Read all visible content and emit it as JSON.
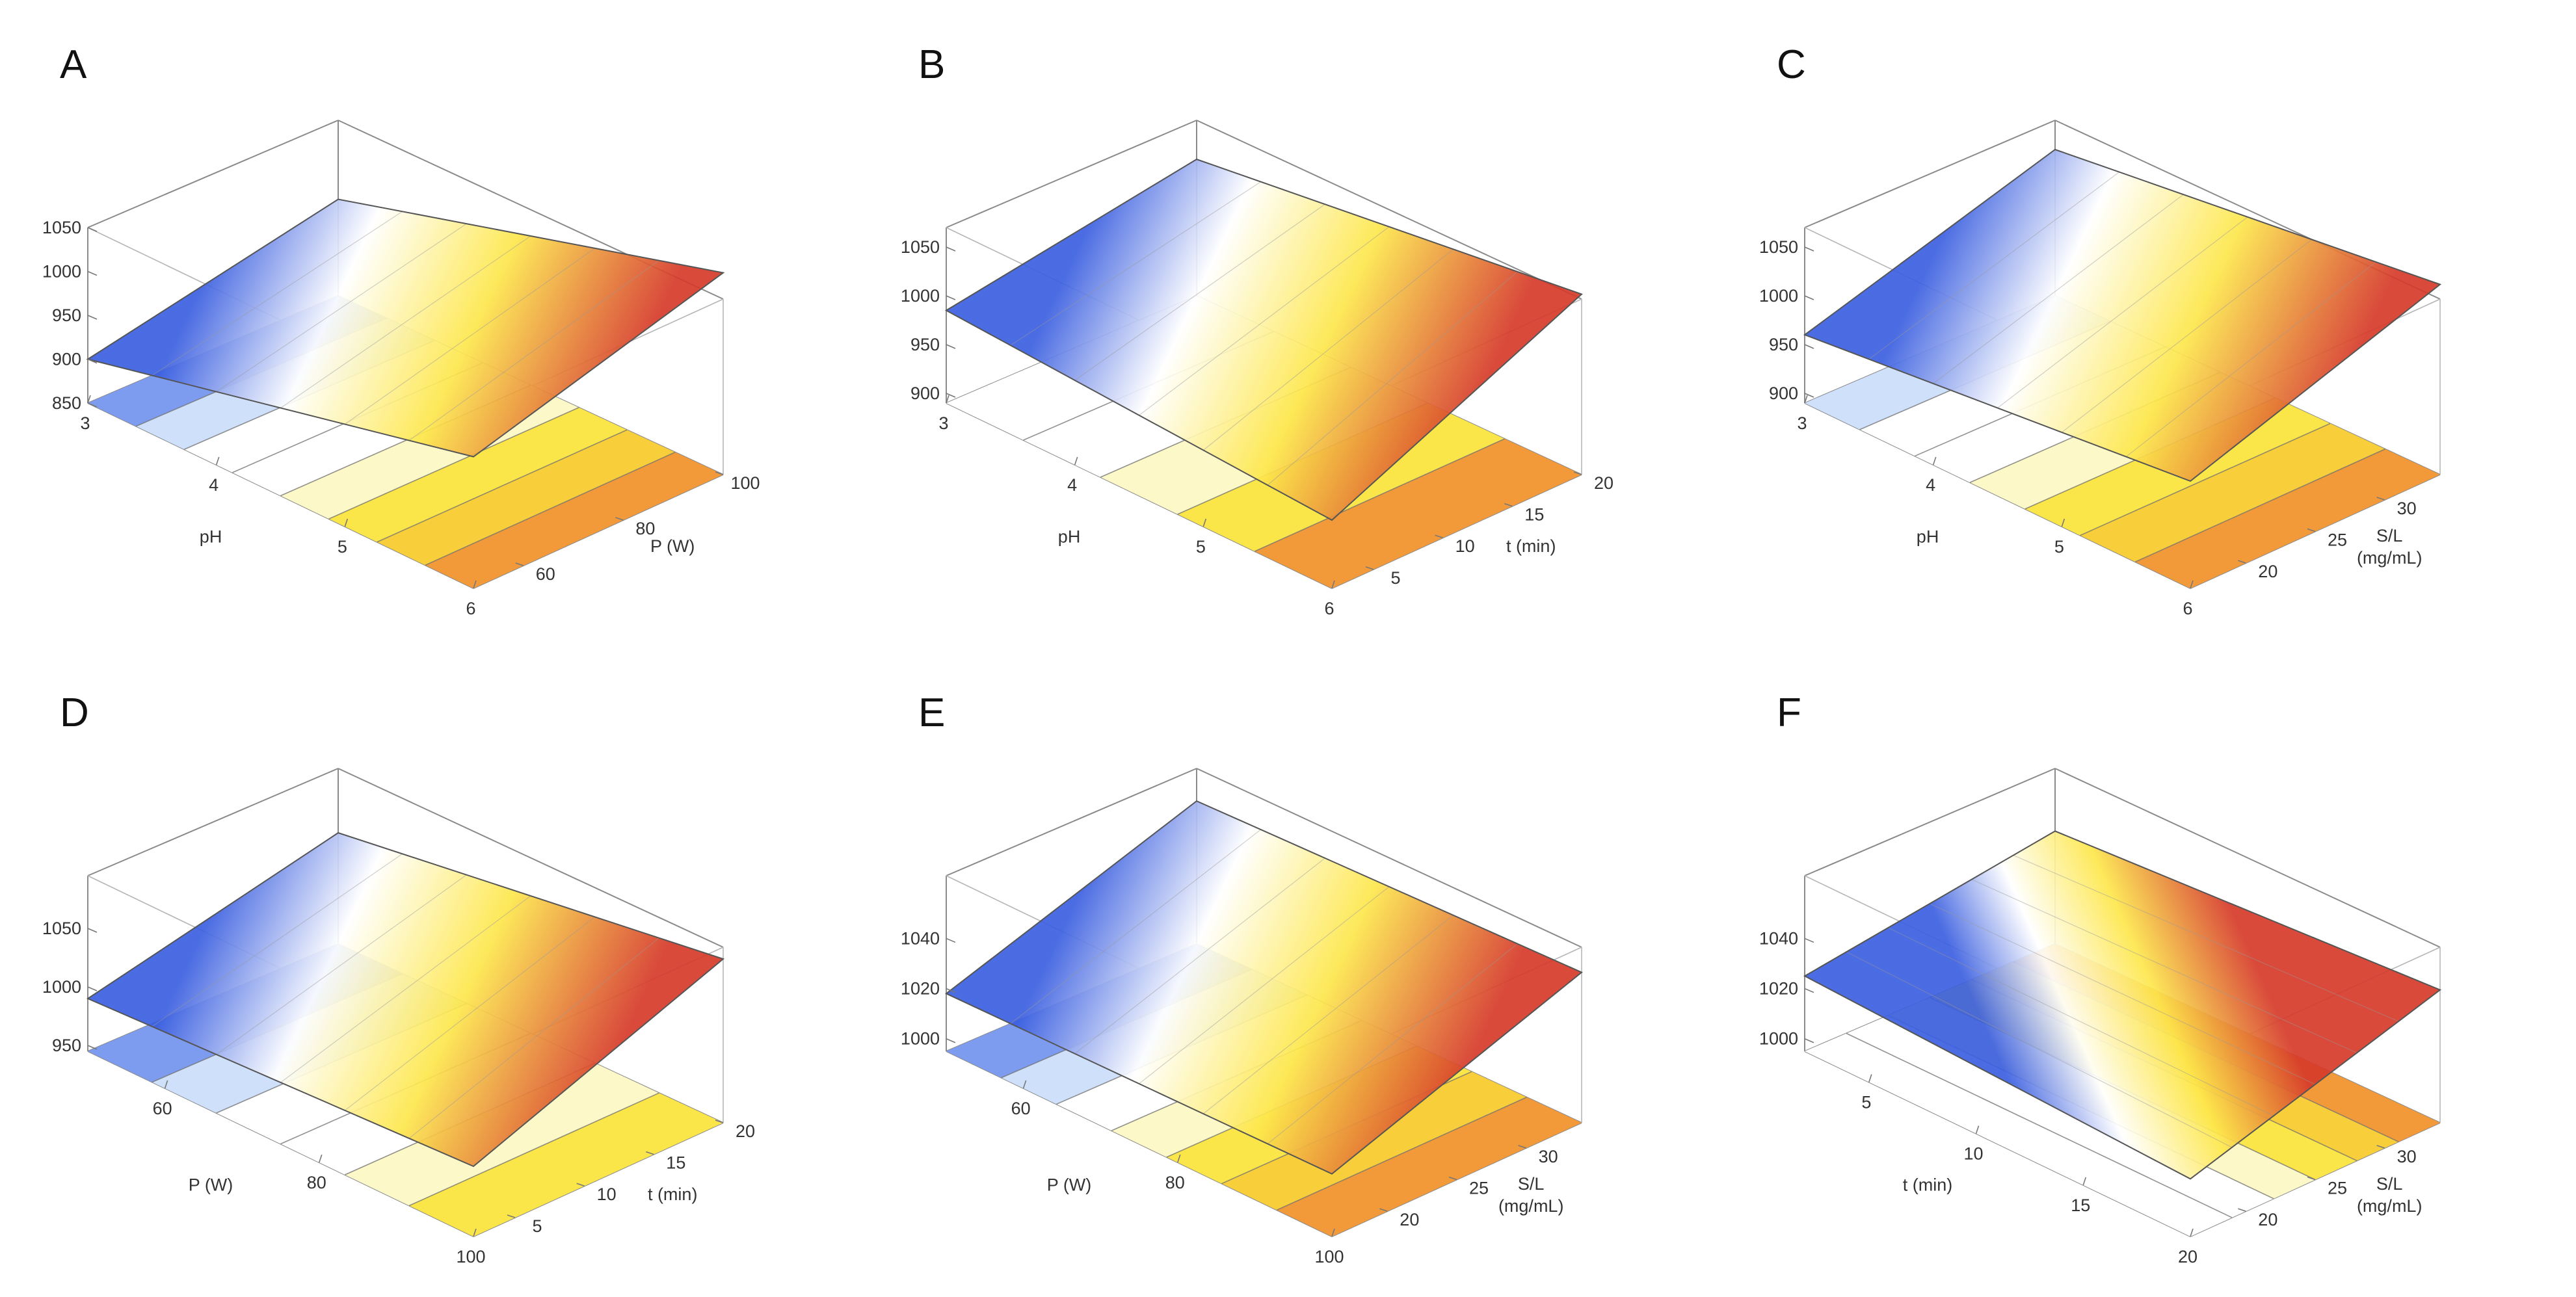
{
  "colors": {
    "cool": "#3b5fe0",
    "pale": "#ffffff",
    "warm_yellow": "#fde74c",
    "hot": "#d63a2a",
    "floor_blue": "#7d9cf0",
    "floor_lightblue": "#cfe0fb",
    "floor_white": "#ffffff",
    "floor_paleyellow": "#fdf8c7",
    "floor_yellow": "#fbe64a",
    "floor_gold": "#f8cf3a",
    "floor_orange": "#f29a3a"
  },
  "chart_data": [
    {
      "panel": "A",
      "type": "surface",
      "title": "A",
      "x": {
        "label": "pH",
        "ticks": [
          "3",
          "4",
          "5",
          "6"
        ],
        "range": [
          3,
          6
        ]
      },
      "y": {
        "label": "P (W)",
        "ticks": [
          "60",
          "80",
          "100"
        ],
        "range": [
          50,
          100
        ]
      },
      "z": {
        "label": "",
        "ticks": [
          "850",
          "900",
          "950",
          "1000",
          "1050"
        ],
        "range": [
          850,
          1050
        ]
      },
      "surface_z_at_corners": {
        "x_min_y_min": 900,
        "x_max_y_min": 1000,
        "x_min_y_max": 960,
        "x_max_y_max": 1080
      },
      "surface_color_direction": "x",
      "floor_bands": [
        "floor_blue",
        "floor_lightblue",
        "floor_white",
        "floor_white",
        "floor_paleyellow",
        "floor_yellow",
        "floor_gold",
        "floor_orange"
      ]
    },
    {
      "panel": "B",
      "type": "surface",
      "title": "B",
      "x": {
        "label": "pH",
        "ticks": [
          "3",
          "4",
          "5",
          "6"
        ],
        "range": [
          3,
          6
        ]
      },
      "y": {
        "label": "t (min)",
        "ticks": [
          "5",
          "10",
          "15",
          "20"
        ],
        "range": [
          2,
          20
        ]
      },
      "z": {
        "label": "",
        "ticks": [
          "900",
          "950",
          "1000",
          "1050"
        ],
        "range": [
          890,
          1070
        ]
      },
      "surface_z_at_corners": {
        "x_min_y_min": 985,
        "x_max_y_min": 960,
        "x_min_y_max": 1030,
        "x_max_y_max": 1075
      },
      "surface_color_direction": "x",
      "floor_bands": [
        "floor_white",
        "floor_white",
        "floor_paleyellow",
        "floor_yellow",
        "floor_orange"
      ]
    },
    {
      "panel": "C",
      "type": "surface",
      "title": "C",
      "x": {
        "label": "pH",
        "ticks": [
          "3",
          "4",
          "5",
          "6"
        ],
        "range": [
          3,
          6
        ]
      },
      "y": {
        "label": "S/L\n(mg/mL)",
        "ticks": [
          "20",
          "25",
          "30"
        ],
        "range": [
          16,
          34
        ]
      },
      "z": {
        "label": "",
        "ticks": [
          "900",
          "950",
          "1000",
          "1050"
        ],
        "range": [
          890,
          1070
        ]
      },
      "surface_z_at_corners": {
        "x_min_y_min": 960,
        "x_max_y_min": 1000,
        "x_min_y_max": 1040,
        "x_max_y_max": 1085
      },
      "surface_color_direction": "x",
      "floor_bands": [
        "floor_lightblue",
        "floor_white",
        "floor_white",
        "floor_paleyellow",
        "floor_yellow",
        "floor_gold",
        "floor_orange"
      ]
    },
    {
      "panel": "D",
      "type": "surface",
      "title": "D",
      "x": {
        "label": "P (W)",
        "ticks": [
          "60",
          "80",
          "100"
        ],
        "range": [
          50,
          100
        ]
      },
      "y": {
        "label": "t (min)",
        "ticks": [
          "5",
          "10",
          "15",
          "20"
        ],
        "range": [
          2,
          20
        ]
      },
      "z": {
        "label": "",
        "ticks": [
          "950",
          "1000",
          "1050"
        ],
        "range": [
          945,
          1095
        ]
      },
      "surface_z_at_corners": {
        "x_min_y_min": 990,
        "x_max_y_min": 1005,
        "x_min_y_max": 1040,
        "x_max_y_max": 1085
      },
      "surface_color_direction": "x",
      "floor_bands": [
        "floor_blue",
        "floor_lightblue",
        "floor_white",
        "floor_white",
        "floor_paleyellow",
        "floor_yellow"
      ]
    },
    {
      "panel": "E",
      "type": "surface",
      "title": "E",
      "x": {
        "label": "P (W)",
        "ticks": [
          "60",
          "80",
          "100"
        ],
        "range": [
          50,
          100
        ]
      },
      "y": {
        "label": "S/L\n(mg/mL)",
        "ticks": [
          "20",
          "25",
          "30"
        ],
        "range": [
          16,
          34
        ]
      },
      "z": {
        "label": "",
        "ticks": [
          "1000",
          "1020",
          "1040"
        ],
        "range": [
          995,
          1065
        ]
      },
      "surface_z_at_corners": {
        "x_min_y_min": 1018,
        "x_max_y_min": 1020,
        "x_min_y_max": 1052,
        "x_max_y_max": 1055
      },
      "surface_color_direction": "x",
      "floor_bands": [
        "floor_blue",
        "floor_lightblue",
        "floor_white",
        "floor_paleyellow",
        "floor_yellow",
        "floor_gold",
        "floor_orange"
      ]
    },
    {
      "panel": "F",
      "type": "surface",
      "title": "F",
      "x": {
        "label": "t (min)",
        "ticks": [
          "5",
          "10",
          "15",
          "20"
        ],
        "range": [
          2,
          20
        ]
      },
      "y": {
        "label": "S/L\n(mg/mL)",
        "ticks": [
          "20",
          "25",
          "30"
        ],
        "range": [
          16,
          34
        ]
      },
      "z": {
        "label": "",
        "ticks": [
          "1000",
          "1020",
          "1040"
        ],
        "range": [
          995,
          1065
        ]
      },
      "surface_z_at_corners": {
        "x_min_y_min": 1025,
        "x_max_y_min": 1018,
        "x_min_y_max": 1040,
        "x_max_y_max": 1048
      },
      "surface_color_direction": "y",
      "floor_bands": [
        "floor_white",
        "floor_white",
        "floor_paleyellow",
        "floor_yellow",
        "floor_gold",
        "floor_orange"
      ]
    }
  ]
}
